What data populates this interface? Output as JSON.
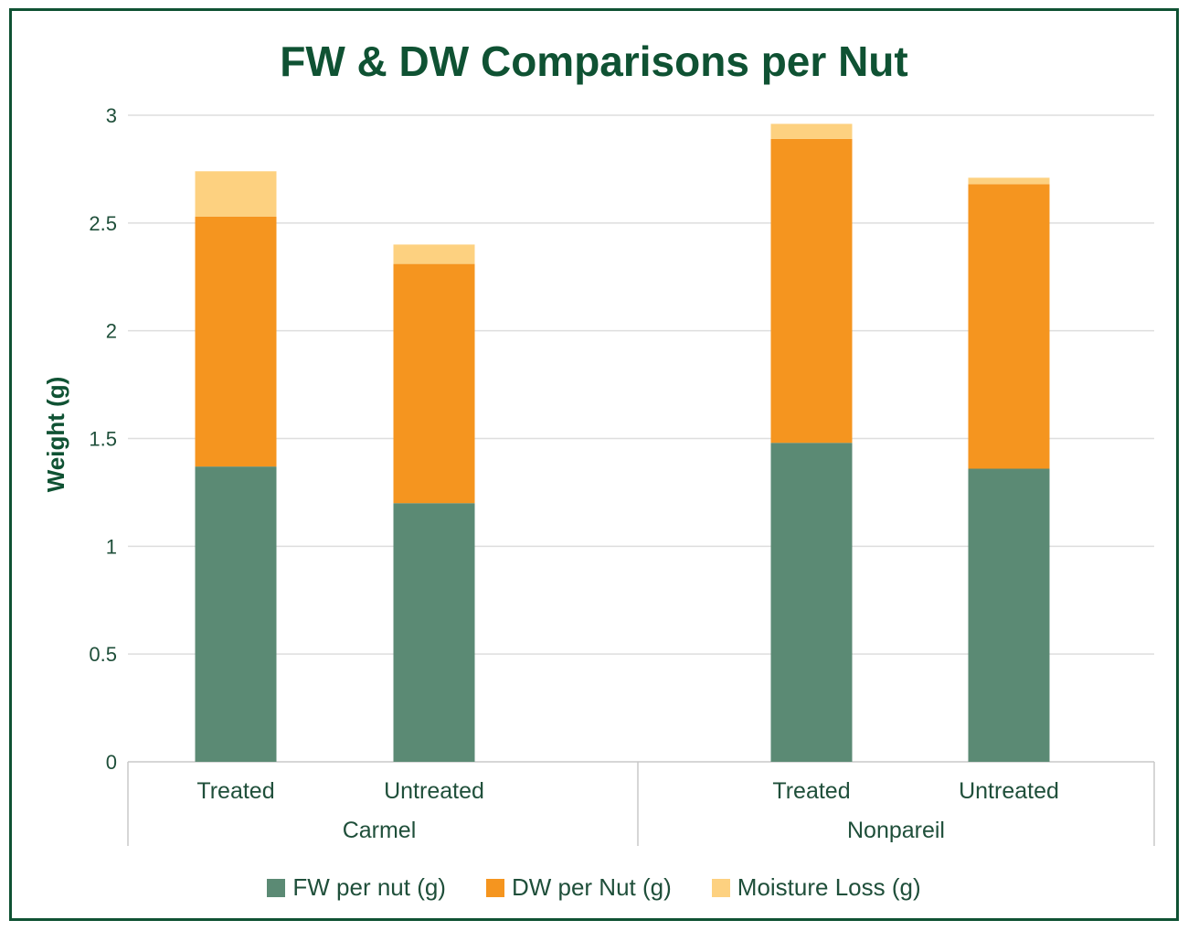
{
  "chart_data": {
    "type": "bar",
    "stacked": true,
    "title": "FW & DW Comparisons per Nut",
    "ylabel": "Weight (g)",
    "xlabel": "",
    "ylim": [
      0,
      3
    ],
    "yticks": [
      "0",
      "0.5",
      "1",
      "1.5",
      "2",
      "2.5",
      "3"
    ],
    "grid": true,
    "legend_position": "bottom",
    "groups": [
      {
        "label": "Carmel",
        "categories": [
          "Treated",
          "Untreated"
        ]
      },
      {
        "label": "Nonpareil",
        "categories": [
          "Treated",
          "Untreated"
        ]
      }
    ],
    "series": [
      {
        "name": "FW per nut (g)",
        "color": "#5b8a74",
        "values": [
          1.37,
          1.2,
          1.48,
          1.36
        ]
      },
      {
        "name": "DW per Nut (g)",
        "color": "#f5951f",
        "values": [
          1.16,
          1.11,
          1.41,
          1.32
        ]
      },
      {
        "name": "Moisture Loss (g)",
        "color": "#fdd180",
        "values": [
          0.21,
          0.09,
          0.07,
          0.03
        ]
      }
    ]
  }
}
